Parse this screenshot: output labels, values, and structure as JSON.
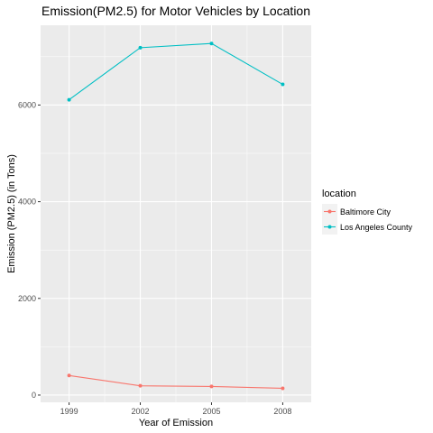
{
  "chart_data": {
    "type": "line",
    "title": "Emission(PM2.5) for Motor Vehicles by Location",
    "xlabel": "Year of Emission",
    "ylabel": "Emission (PM2.5) (in Tons)",
    "x": [
      1999,
      2002,
      2005,
      2008
    ],
    "xlim": [
      1997.8,
      2009.2
    ],
    "ylim": [
      -150,
      7650
    ],
    "xticks": [
      1999,
      2002,
      2005,
      2008
    ],
    "yticks": [
      0,
      2000,
      4000,
      6000
    ],
    "grid": true,
    "legend": {
      "title": "location",
      "placement": "right"
    },
    "series": [
      {
        "name": "Baltimore City",
        "color": "#F8766D",
        "values": [
          404,
          192,
          178,
          140
        ]
      },
      {
        "name": "Los Angeles County",
        "color": "#00BFC4",
        "values": [
          6109,
          7186,
          7273,
          6427
        ]
      }
    ],
    "panel_background": "#EBEBEB",
    "gridline_color": "#FFFFFF",
    "tick_color": "#333333"
  }
}
